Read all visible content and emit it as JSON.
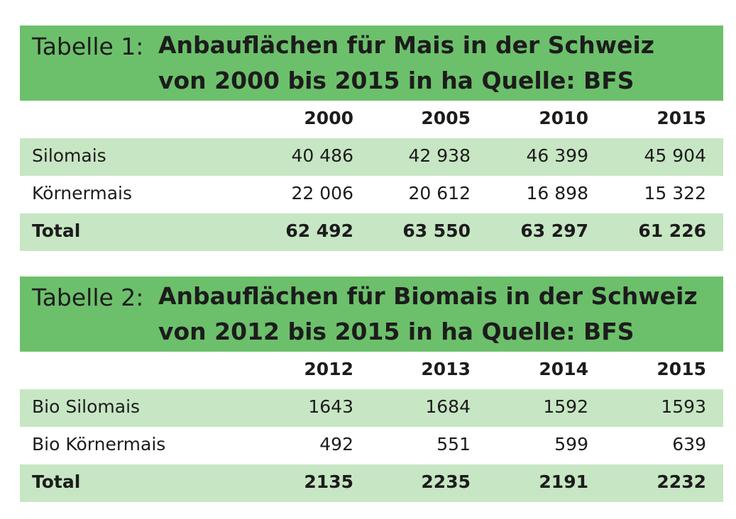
{
  "tables": [
    {
      "prefix": "Tabelle 1:",
      "title_line1": "Anbauflächen für Mais in der Schweiz",
      "title_line2": "von 2000 bis 2015 in ha  Quelle: BFS",
      "years": [
        "2000",
        "2005",
        "2010",
        "2015"
      ],
      "rows": [
        {
          "label": "Silomais",
          "values": [
            "40 486",
            "42 938",
            "46 399",
            "45 904"
          ]
        },
        {
          "label": "Körnermais",
          "values": [
            "22 006",
            "20 612",
            "16 898",
            "15 322"
          ]
        },
        {
          "label": "Total",
          "values": [
            "62 492",
            "63 550",
            "63 297",
            "61 226"
          ]
        }
      ]
    },
    {
      "prefix": "Tabelle 2:",
      "title_line1": "Anbauflächen für Biomais in der Schweiz",
      "title_line2": "von 2012 bis 2015 in ha  Quelle: BFS",
      "years": [
        "2012",
        "2013",
        "2014",
        "2015"
      ],
      "rows": [
        {
          "label": "Bio Silomais",
          "values": [
            "1643",
            "1684",
            "1592",
            "1593"
          ]
        },
        {
          "label": "Bio Körnermais",
          "values": [
            "492",
            "551",
            "599",
            "639"
          ]
        },
        {
          "label": "Total",
          "values": [
            "2135",
            "2235",
            "2191",
            "2232"
          ]
        }
      ]
    }
  ],
  "colors": {
    "title_bar": "#6cc06b",
    "row_tint": "#c7e6c3",
    "text": "#1c1c1c"
  }
}
